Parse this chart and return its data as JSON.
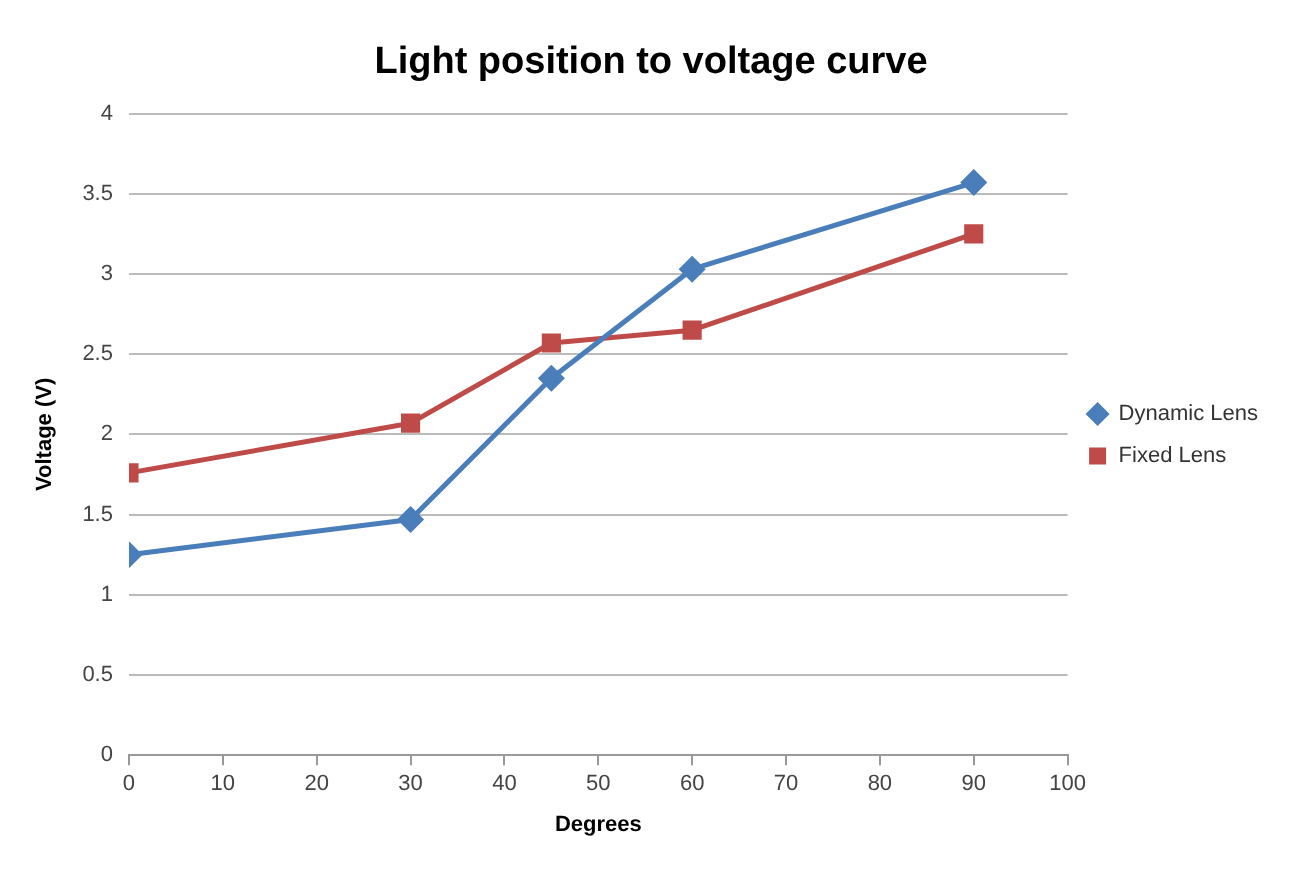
{
  "chart_data": {
    "type": "line",
    "title": "Light position to voltage curve",
    "xlabel": "Degrees",
    "ylabel": "Voltage (V)",
    "x": [
      0,
      30,
      45,
      60,
      90
    ],
    "series": [
      {
        "name": "Dynamic Lens",
        "color": "#4a7ebb",
        "marker": "diamond",
        "values": [
          1.25,
          1.47,
          2.35,
          3.03,
          3.57
        ]
      },
      {
        "name": "Fixed Lens",
        "color": "#be4b48",
        "marker": "square",
        "values": [
          1.76,
          2.07,
          2.57,
          2.65,
          3.25
        ]
      }
    ],
    "xlim": [
      0,
      100
    ],
    "xticks": [
      0,
      10,
      20,
      30,
      40,
      50,
      60,
      70,
      80,
      90,
      100
    ],
    "ylim": [
      0,
      4
    ],
    "yticks": [
      0,
      0.5,
      1,
      1.5,
      2,
      2.5,
      3,
      3.5,
      4
    ],
    "grid": "y",
    "legend": "right",
    "line_style": "solid"
  }
}
